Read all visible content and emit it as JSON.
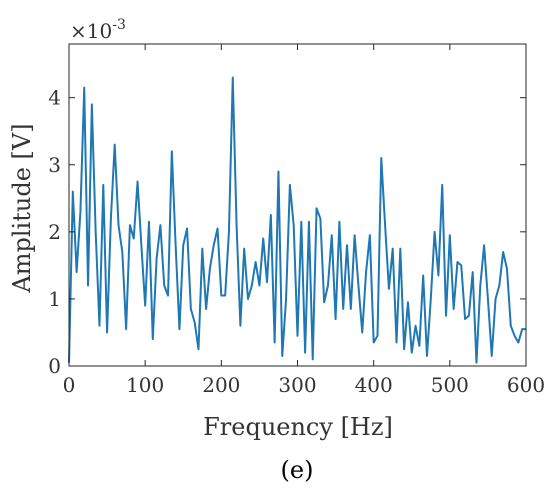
{
  "chart_data": {
    "type": "line",
    "panel_label": "(e)",
    "xlabel": "Frequency [Hz]",
    "ylabel": "Amplitude [V]",
    "y_multiplier": {
      "base": "×10",
      "exponent": "-3"
    },
    "xlim": [
      0,
      600
    ],
    "ylim": [
      0,
      4.8
    ],
    "xticks": [
      0,
      100,
      200,
      300,
      400,
      500,
      600
    ],
    "yticks": [
      0,
      1,
      2,
      3,
      4
    ],
    "grid": false,
    "line_color": "#1f77b4",
    "series": [
      {
        "x": [
          0,
          5,
          10,
          15,
          20,
          25,
          30,
          35,
          40,
          45,
          50,
          55,
          60,
          65,
          70,
          75,
          80,
          85,
          90,
          95,
          100,
          105,
          110,
          115,
          120,
          125,
          130,
          135,
          140,
          145,
          150,
          155,
          160,
          165,
          170,
          175,
          180,
          185,
          190,
          195,
          200,
          205,
          210,
          215,
          220,
          225,
          230,
          235,
          240,
          245,
          250,
          255,
          260,
          265,
          270,
          275,
          280,
          285,
          290,
          295,
          300,
          305,
          310,
          315,
          320,
          325,
          330,
          335,
          340,
          345,
          350,
          355,
          360,
          365,
          370,
          375,
          380,
          385,
          390,
          395,
          400,
          405,
          410,
          415,
          420,
          425,
          430,
          435,
          440,
          445,
          450,
          455,
          460,
          465,
          470,
          475,
          480,
          485,
          490,
          495,
          500,
          505,
          510,
          515,
          520,
          525,
          530,
          535,
          540,
          545,
          550,
          555,
          560,
          565,
          570,
          575,
          580,
          585,
          590,
          595,
          600
        ],
        "values": [
          0.05,
          2.6,
          1.4,
          2.3,
          4.15,
          1.2,
          3.9,
          2.0,
          0.6,
          2.7,
          0.5,
          2.2,
          3.3,
          2.1,
          1.7,
          0.55,
          2.1,
          1.9,
          2.75,
          1.8,
          0.9,
          2.15,
          0.4,
          1.6,
          2.1,
          1.2,
          1.05,
          3.2,
          1.8,
          0.55,
          1.8,
          2.05,
          0.85,
          0.65,
          0.25,
          1.75,
          0.85,
          1.45,
          1.8,
          2.05,
          1.05,
          1.05,
          2.0,
          4.3,
          2.1,
          0.6,
          1.75,
          1.0,
          1.2,
          1.55,
          1.2,
          1.9,
          1.25,
          2.25,
          0.35,
          2.9,
          0.15,
          1.0,
          2.7,
          2.1,
          0.45,
          2.15,
          0.2,
          2.15,
          0.1,
          2.35,
          2.2,
          0.95,
          1.2,
          1.95,
          0.7,
          2.15,
          0.85,
          1.8,
          0.85,
          1.95,
          1.2,
          0.5,
          1.4,
          1.95,
          0.35,
          0.45,
          3.1,
          2.1,
          1.15,
          1.75,
          0.35,
          1.75,
          0.25,
          0.95,
          0.2,
          0.6,
          0.3,
          1.35,
          0.15,
          1.0,
          2.0,
          1.35,
          2.7,
          0.75,
          1.95,
          0.85,
          1.55,
          1.5,
          0.7,
          0.75,
          1.4,
          0.05,
          1.2,
          1.8,
          1.0,
          0.15,
          1.0,
          1.2,
          1.7,
          1.45,
          0.6,
          0.45,
          0.35,
          0.55,
          0.55
        ]
      }
    ]
  }
}
